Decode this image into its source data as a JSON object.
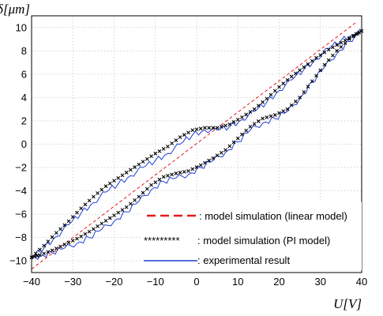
{
  "chart_data": {
    "type": "line",
    "xlabel": "U[V]",
    "ylabel": "δ[μm]",
    "xlim": [
      -40,
      40
    ],
    "ylim": [
      -11,
      11
    ],
    "xticks": [
      "-40",
      "-30",
      "-20",
      "-10",
      "0",
      "10",
      "20",
      "30",
      "40"
    ],
    "yticks": [
      "10",
      "8",
      "6",
      "4",
      "2",
      "0",
      "-2",
      "-4",
      "-6",
      "-8",
      "-10"
    ],
    "grid": true,
    "legend_position": "bottom-right",
    "series": [
      {
        "name": ": model simulation (linear model)",
        "legend_marker": "",
        "color": "#e31a1c",
        "style": "dashed",
        "x": [
          -40,
          38.5
        ],
        "y": [
          -10.7,
          10.4
        ]
      },
      {
        "name": ": model simulation (PI model)",
        "legend_marker": "*********",
        "color": "#000000",
        "style": "markers",
        "x": [
          -40,
          -37,
          -34,
          -31,
          -28,
          -25,
          -22,
          -19,
          -16,
          -13,
          -10,
          -7,
          -4,
          -1,
          2,
          5,
          8,
          11,
          14,
          17,
          20,
          23,
          26,
          29,
          32,
          35,
          38,
          40,
          37,
          34,
          31,
          28,
          25,
          22,
          19,
          16,
          13,
          10,
          7,
          4,
          1,
          -2,
          -5,
          -8,
          -11,
          -14,
          -17,
          -20,
          -23,
          -26,
          -29,
          -32,
          -35,
          -38,
          -40
        ],
        "y": [
          -9.7,
          -8.7,
          -7.6,
          -6.6,
          -5.5,
          -4.5,
          -3.6,
          -2.9,
          -2.2,
          -1.5,
          -0.8,
          -0.2,
          0.6,
          1.2,
          1.4,
          1.4,
          1.7,
          2.3,
          3.0,
          3.9,
          4.9,
          5.8,
          6.6,
          7.4,
          8.1,
          8.7,
          9.3,
          9.7,
          9.0,
          8.0,
          6.8,
          5.4,
          4.0,
          3.0,
          2.5,
          2.2,
          1.5,
          0.5,
          -0.5,
          -1.2,
          -1.8,
          -2.3,
          -2.5,
          -2.8,
          -3.5,
          -4.5,
          -5.4,
          -6.1,
          -6.8,
          -7.5,
          -8.1,
          -8.6,
          -9.1,
          -9.5,
          -9.7
        ]
      },
      {
        "name": ": experimental result",
        "legend_marker": "",
        "color": "#1f3fd6",
        "style": "solid",
        "x": [
          -40,
          -37,
          -34,
          -31,
          -28,
          -25,
          -22,
          -19,
          -16,
          -13,
          -10,
          -7,
          -4,
          -1,
          2,
          5,
          8,
          11,
          14,
          17,
          20,
          23,
          26,
          29,
          32,
          35,
          38,
          40,
          37,
          34,
          31,
          28,
          25,
          22,
          19,
          16,
          13,
          10,
          7,
          4,
          1,
          -2,
          -5,
          -8,
          -11,
          -14,
          -17,
          -20,
          -23,
          -26,
          -29,
          -32,
          -35,
          -38,
          -40
        ],
        "y": [
          -9.7,
          -8.9,
          -7.9,
          -6.9,
          -5.9,
          -5.0,
          -4.1,
          -3.4,
          -2.7,
          -2.0,
          -1.4,
          -0.8,
          0.0,
          0.8,
          1.2,
          1.2,
          1.5,
          2.1,
          2.8,
          3.6,
          4.6,
          5.5,
          6.4,
          7.3,
          8.2,
          8.9,
          9.4,
          9.7,
          8.8,
          7.8,
          6.6,
          5.3,
          3.9,
          2.8,
          2.2,
          1.8,
          1.2,
          0.2,
          -0.7,
          -1.4,
          -2.0,
          -2.6,
          -2.9,
          -3.2,
          -3.9,
          -4.9,
          -5.8,
          -6.6,
          -7.3,
          -8.0,
          -8.5,
          -8.9,
          -9.3,
          -9.6,
          -9.8
        ]
      }
    ]
  }
}
